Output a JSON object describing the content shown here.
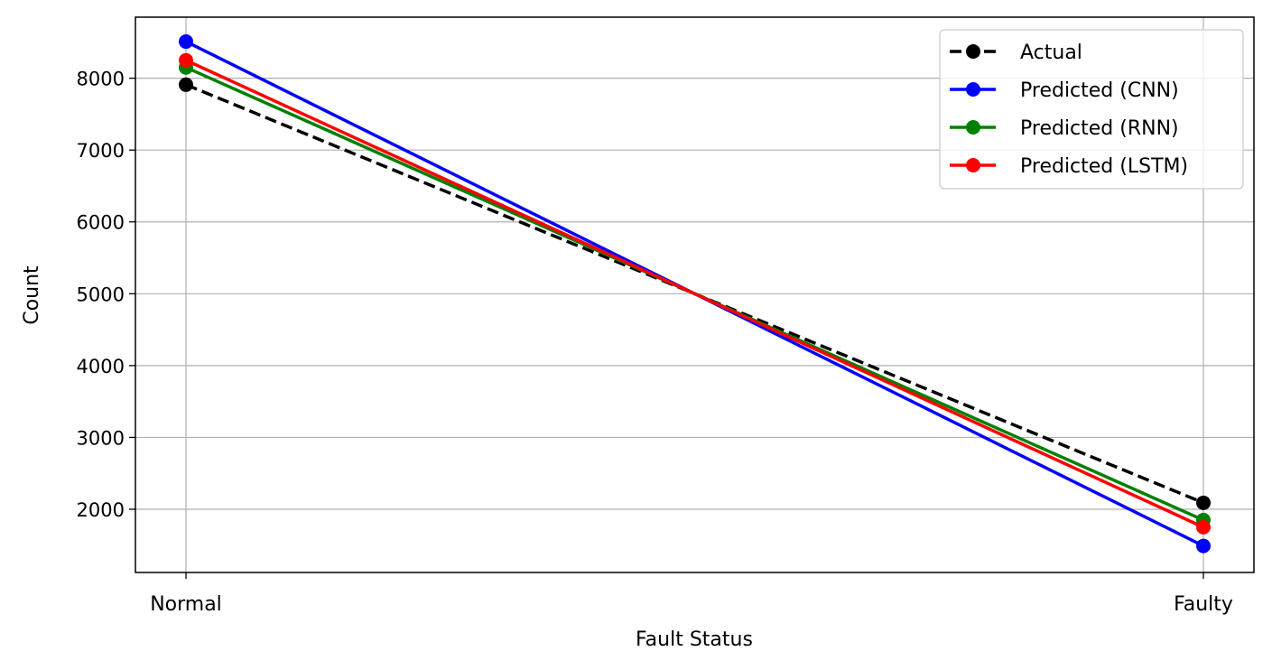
{
  "chart_data": {
    "type": "line",
    "categories": [
      "Normal",
      "Faulty"
    ],
    "xlabel": "Fault Status",
    "ylabel": "Count",
    "ylim": [
      1120,
      8850
    ],
    "yticks": [
      2000,
      3000,
      4000,
      5000,
      6000,
      7000,
      8000
    ],
    "grid": true,
    "legend_position": "top-right",
    "series": [
      {
        "name": "Actual",
        "values": [
          7910,
          2090
        ],
        "color": "#000000",
        "dashed": true
      },
      {
        "name": "Predicted (CNN)",
        "values": [
          8510,
          1490
        ],
        "color": "#0000ff",
        "dashed": false
      },
      {
        "name": "Predicted (RNN)",
        "values": [
          8150,
          1850
        ],
        "color": "#008000",
        "dashed": false
      },
      {
        "name": "Predicted (LSTM)",
        "values": [
          8250,
          1750
        ],
        "color": "#ff0000",
        "dashed": false
      }
    ]
  }
}
